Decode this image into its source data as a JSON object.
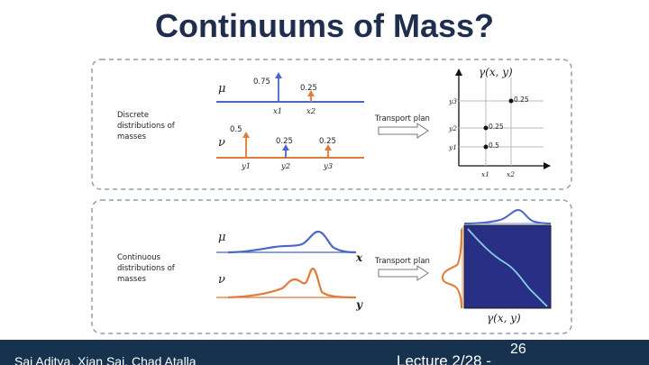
{
  "slide": {
    "title": "Continuums of Mass?",
    "page_number": "26"
  },
  "footer": {
    "authors": "Sai Aditya, Xian Sai, Chad Atalla",
    "lecture": "Lecture 2/28 -"
  },
  "discrete_panel": {
    "description": [
      "Discrete",
      "distributions of",
      "masses"
    ],
    "mu_symbol": "μ",
    "nu_symbol": "ν",
    "mu_masses": [
      "0.75",
      "0.25"
    ],
    "mu_points": [
      "x1",
      "x2"
    ],
    "nu_masses": [
      "0.5",
      "0.25",
      "0.25"
    ],
    "nu_points": [
      "y1",
      "y2",
      "y3"
    ],
    "arrow_label": "Transport plan",
    "plan_title": "γ(x, y)",
    "plan_y_ticks": [
      "y3",
      "y2",
      "y1"
    ],
    "plan_x_ticks": [
      "x1",
      "x2"
    ],
    "plan_cells": [
      "0.25",
      "0.25",
      "0.5"
    ]
  },
  "continuous_panel": {
    "description": [
      "Continuous",
      "distributions of",
      "masses"
    ],
    "mu_symbol": "μ",
    "nu_symbol": "ν",
    "x_axis_label": "x",
    "y_axis_label": "y",
    "arrow_label": "Transport plan",
    "plan_title": "γ(x, y)"
  },
  "colors": {
    "title": "#1f2e4f",
    "footer_bg": "#16324f",
    "mu": "#4a67c8",
    "nu": "#e07b39",
    "plan_bg": "#2a2f86",
    "plan_curve": "#7fd0e0",
    "panel_border": "#8f9fb0"
  }
}
